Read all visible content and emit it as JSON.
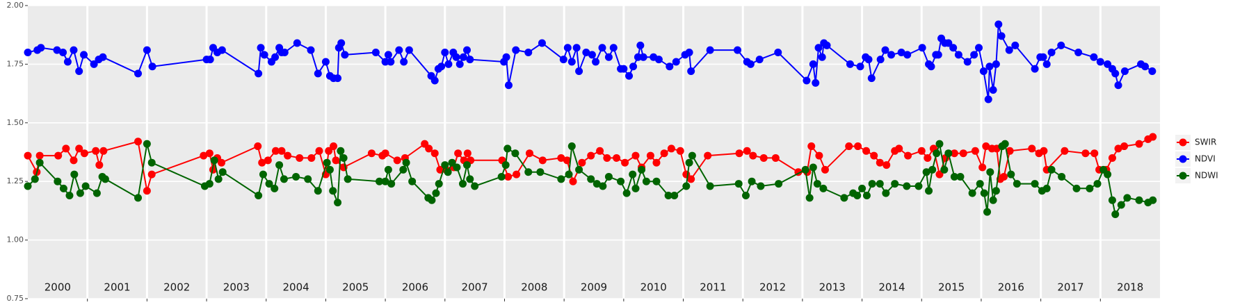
{
  "chart_data": {
    "type": "line",
    "xlim": [
      2000,
      2019
    ],
    "xticks": [
      {
        "value": 2000.5,
        "label": "2000"
      },
      {
        "value": 2001.5,
        "label": "2001"
      },
      {
        "value": 2002.5,
        "label": "2002"
      },
      {
        "value": 2003.5,
        "label": "2003"
      },
      {
        "value": 2004.5,
        "label": "2004"
      },
      {
        "value": 2005.5,
        "label": "2005"
      },
      {
        "value": 2006.5,
        "label": "2006"
      },
      {
        "value": 2007.5,
        "label": "2007"
      },
      {
        "value": 2008.5,
        "label": "2008"
      },
      {
        "value": 2009.5,
        "label": "2009"
      },
      {
        "value": 2010.5,
        "label": "2010"
      },
      {
        "value": 2011.5,
        "label": "2011"
      },
      {
        "value": 2012.5,
        "label": "2012"
      },
      {
        "value": 2013.5,
        "label": "2013"
      },
      {
        "value": 2014.5,
        "label": "2014"
      },
      {
        "value": 2015.5,
        "label": "2015"
      },
      {
        "value": 2016.5,
        "label": "2016"
      },
      {
        "value": 2017.5,
        "label": "2017"
      },
      {
        "value": 2018.5,
        "label": "2018"
      }
    ],
    "ylim": [
      0.75,
      2.0
    ],
    "yticks": [
      0.75,
      {
        "value": 1.0,
        "label": "1.00"
      },
      1.25,
      {
        "value": 1.5,
        "label": "1.50"
      },
      1.75,
      {
        "value": 2.0,
        "label": "2.00"
      }
    ],
    "grid": true,
    "legend": "right",
    "series": [
      {
        "name": "SWIR",
        "color": "#ff0000",
        "x": [
          2000.0,
          2000.15,
          2000.2,
          2000.51,
          2000.64,
          2000.77,
          2000.86,
          2000.95,
          2001.14,
          2001.2,
          2001.27,
          2001.85,
          2002.0,
          2002.08,
          2002.95,
          2003.05,
          2003.11,
          2003.18,
          2003.25,
          2003.86,
          2003.93,
          2004.03,
          2004.16,
          2004.26,
          2004.36,
          2004.56,
          2004.76,
          2004.89,
          2005.0,
          2005.05,
          2005.13,
          2005.17,
          2005.3,
          2005.77,
          2005.95,
          2006.0,
          2006.2,
          2006.33,
          2006.66,
          2006.73,
          2006.83,
          2006.92,
          2007.02,
          2007.15,
          2007.22,
          2007.32,
          2007.38,
          2007.43,
          2007.96,
          2008.06,
          2008.2,
          2008.42,
          2008.64,
          2008.95,
          2009.05,
          2009.15,
          2009.3,
          2009.45,
          2009.6,
          2009.72,
          2009.88,
          2010.02,
          2010.2,
          2010.3,
          2010.45,
          2010.55,
          2010.68,
          2010.8,
          2010.95,
          2011.05,
          2011.13,
          2011.41,
          2011.94,
          2012.07,
          2012.17,
          2012.35,
          2012.55,
          2012.93,
          2013.08,
          2013.15,
          2013.28,
          2013.38,
          2013.78,
          2013.93,
          2014.07,
          2014.2,
          2014.3,
          2014.41,
          2014.55,
          2014.62,
          2014.77,
          2015.0,
          2015.1,
          2015.2,
          2015.3,
          2015.4,
          2015.55,
          2015.7,
          2015.9,
          2016.02,
          2016.08,
          2016.18,
          2016.26,
          2016.32,
          2016.38,
          2016.48,
          2016.85,
          2016.97,
          2017.05,
          2017.1,
          2017.4,
          2017.75,
          2017.9,
          2017.98,
          2018.1,
          2018.2,
          2018.3,
          2018.4,
          2018.65,
          2018.8,
          2018.88
        ],
        "values": [
          1.36,
          1.29,
          1.36,
          1.36,
          1.39,
          1.34,
          1.39,
          1.37,
          1.38,
          1.32,
          1.38,
          1.42,
          1.21,
          1.28,
          1.36,
          1.37,
          1.3,
          1.35,
          1.33,
          1.4,
          1.33,
          1.34,
          1.38,
          1.38,
          1.36,
          1.35,
          1.35,
          1.38,
          1.28,
          1.38,
          1.4,
          1.34,
          1.31,
          1.37,
          1.36,
          1.37,
          1.34,
          1.35,
          1.41,
          1.39,
          1.37,
          1.3,
          1.3,
          1.31,
          1.37,
          1.34,
          1.37,
          1.34,
          1.34,
          1.27,
          1.28,
          1.37,
          1.34,
          1.35,
          1.34,
          1.25,
          1.33,
          1.36,
          1.38,
          1.35,
          1.35,
          1.33,
          1.36,
          1.31,
          1.36,
          1.33,
          1.37,
          1.39,
          1.38,
          1.28,
          1.26,
          1.36,
          1.37,
          1.38,
          1.36,
          1.35,
          1.35,
          1.29,
          1.29,
          1.4,
          1.36,
          1.3,
          1.4,
          1.4,
          1.38,
          1.36,
          1.33,
          1.32,
          1.38,
          1.39,
          1.36,
          1.38,
          1.35,
          1.39,
          1.28,
          1.35,
          1.37,
          1.37,
          1.38,
          1.31,
          1.4,
          1.39,
          1.39,
          1.26,
          1.27,
          1.38,
          1.39,
          1.37,
          1.38,
          1.3,
          1.38,
          1.37,
          1.37,
          1.3,
          1.3,
          1.35,
          1.39,
          1.4,
          1.41,
          1.43,
          1.44
        ]
      },
      {
        "name": "NDVI",
        "color": "#0000ff",
        "x": [
          2000.0,
          2000.16,
          2000.22,
          2000.49,
          2000.59,
          2000.67,
          2000.77,
          2000.86,
          2000.94,
          2001.11,
          2001.19,
          2001.26,
          2001.85,
          2002.0,
          2002.09,
          2003.0,
          2003.06,
          2003.11,
          2003.18,
          2003.26,
          2003.87,
          2003.91,
          2003.97,
          2004.09,
          2004.15,
          2004.22,
          2004.26,
          2004.31,
          2004.52,
          2004.75,
          2004.87,
          2005.0,
          2005.07,
          2005.13,
          2005.2,
          2005.22,
          2005.26,
          2005.32,
          2005.84,
          2006.0,
          2006.05,
          2006.09,
          2006.23,
          2006.31,
          2006.4,
          2006.77,
          2006.83,
          2006.89,
          2006.94,
          2007.0,
          2007.06,
          2007.14,
          2007.19,
          2007.25,
          2007.31,
          2007.37,
          2007.42,
          2007.99,
          2008.03,
          2008.07,
          2008.19,
          2008.4,
          2008.63,
          2008.99,
          2009.06,
          2009.13,
          2009.21,
          2009.25,
          2009.37,
          2009.47,
          2009.53,
          2009.64,
          2009.75,
          2009.83,
          2009.95,
          2010.0,
          2010.09,
          2010.16,
          2010.24,
          2010.28,
          2010.33,
          2010.5,
          2010.59,
          2010.77,
          2010.88,
          2011.03,
          2011.1,
          2011.13,
          2011.45,
          2011.91,
          2012.07,
          2012.13,
          2012.28,
          2012.59,
          2013.07,
          2013.18,
          2013.22,
          2013.27,
          2013.33,
          2013.36,
          2013.41,
          2013.8,
          2013.97,
          2014.06,
          2014.11,
          2014.16,
          2014.31,
          2014.39,
          2014.49,
          2014.66,
          2014.76,
          2015.01,
          2015.12,
          2015.16,
          2015.24,
          2015.28,
          2015.33,
          2015.39,
          2015.45,
          2015.53,
          2015.62,
          2015.77,
          2015.88,
          2015.96,
          2016.04,
          2016.12,
          2016.14,
          2016.2,
          2016.25,
          2016.29,
          2016.34,
          2016.47,
          2016.57,
          2016.9,
          2016.99,
          2017.04,
          2017.1,
          2017.18,
          2017.34,
          2017.63,
          2017.89,
          2018.0,
          2018.12,
          2018.2,
          2018.25,
          2018.3,
          2018.41,
          2018.68,
          2018.75,
          2018.87
        ],
        "values": [
          1.8,
          1.81,
          1.82,
          1.81,
          1.8,
          1.76,
          1.81,
          1.72,
          1.79,
          1.75,
          1.77,
          1.78,
          1.71,
          1.81,
          1.74,
          1.77,
          1.77,
          1.82,
          1.8,
          1.81,
          1.71,
          1.82,
          1.79,
          1.76,
          1.78,
          1.82,
          1.8,
          1.8,
          1.84,
          1.81,
          1.71,
          1.76,
          1.7,
          1.69,
          1.69,
          1.82,
          1.84,
          1.79,
          1.8,
          1.76,
          1.79,
          1.76,
          1.81,
          1.76,
          1.81,
          1.7,
          1.68,
          1.73,
          1.74,
          1.8,
          1.75,
          1.8,
          1.78,
          1.75,
          1.78,
          1.81,
          1.77,
          1.76,
          1.78,
          1.66,
          1.81,
          1.8,
          1.84,
          1.77,
          1.82,
          1.76,
          1.82,
          1.72,
          1.8,
          1.79,
          1.76,
          1.82,
          1.78,
          1.82,
          1.73,
          1.73,
          1.7,
          1.74,
          1.78,
          1.83,
          1.78,
          1.78,
          1.77,
          1.74,
          1.76,
          1.79,
          1.8,
          1.72,
          1.81,
          1.81,
          1.76,
          1.75,
          1.77,
          1.8,
          1.68,
          1.75,
          1.67,
          1.82,
          1.78,
          1.84,
          1.83,
          1.75,
          1.74,
          1.78,
          1.77,
          1.69,
          1.77,
          1.81,
          1.79,
          1.8,
          1.79,
          1.82,
          1.75,
          1.74,
          1.79,
          1.79,
          1.86,
          1.84,
          1.84,
          1.82,
          1.79,
          1.76,
          1.79,
          1.82,
          1.72,
          1.6,
          1.74,
          1.64,
          1.75,
          1.92,
          1.87,
          1.81,
          1.83,
          1.73,
          1.78,
          1.78,
          1.75,
          1.8,
          1.83,
          1.8,
          1.78,
          1.76,
          1.75,
          1.73,
          1.71,
          1.66,
          1.72,
          1.75,
          1.74,
          1.72
        ]
      },
      {
        "name": "NDWI",
        "color": "#006400",
        "x": [
          2000.0,
          2000.12,
          2000.2,
          2000.5,
          2000.6,
          2000.7,
          2000.78,
          2000.88,
          2000.97,
          2001.16,
          2001.25,
          2001.3,
          2001.85,
          2002.0,
          2002.08,
          2002.97,
          2003.05,
          2003.13,
          2003.2,
          2003.27,
          2003.87,
          2003.95,
          2004.05,
          2004.14,
          2004.22,
          2004.3,
          2004.5,
          2004.7,
          2004.87,
          2005.02,
          2005.07,
          2005.12,
          2005.2,
          2005.25,
          2005.3,
          2005.37,
          2005.9,
          2006.0,
          2006.05,
          2006.1,
          2006.3,
          2006.35,
          2006.45,
          2006.72,
          2006.78,
          2006.85,
          2006.9,
          2007.0,
          2007.05,
          2007.12,
          2007.2,
          2007.3,
          2007.37,
          2007.42,
          2007.5,
          2007.95,
          2008.02,
          2008.05,
          2008.18,
          2008.4,
          2008.6,
          2008.95,
          2009.08,
          2009.13,
          2009.25,
          2009.45,
          2009.55,
          2009.65,
          2009.75,
          2009.95,
          2010.05,
          2010.15,
          2010.2,
          2010.3,
          2010.38,
          2010.55,
          2010.75,
          2010.85,
          2011.05,
          2011.1,
          2011.15,
          2011.45,
          2011.93,
          2012.05,
          2012.15,
          2012.3,
          2012.6,
          2013.05,
          2013.12,
          2013.18,
          2013.25,
          2013.35,
          2013.7,
          2013.85,
          2013.92,
          2014.0,
          2014.08,
          2014.17,
          2014.3,
          2014.4,
          2014.55,
          2014.75,
          2014.95,
          2015.08,
          2015.12,
          2015.18,
          2015.25,
          2015.3,
          2015.38,
          2015.45,
          2015.55,
          2015.65,
          2015.85,
          2015.98,
          2016.05,
          2016.1,
          2016.15,
          2016.2,
          2016.25,
          2016.35,
          2016.4,
          2016.5,
          2016.6,
          2016.9,
          2017.02,
          2017.1,
          2017.18,
          2017.35,
          2017.6,
          2017.82,
          2017.95,
          2018.05,
          2018.12,
          2018.2,
          2018.25,
          2018.35,
          2018.45,
          2018.65,
          2018.8,
          2018.88
        ],
        "values": [
          1.23,
          1.26,
          1.33,
          1.25,
          1.22,
          1.19,
          1.28,
          1.2,
          1.23,
          1.2,
          1.27,
          1.26,
          1.18,
          1.41,
          1.33,
          1.23,
          1.24,
          1.34,
          1.26,
          1.29,
          1.19,
          1.28,
          1.24,
          1.22,
          1.32,
          1.26,
          1.27,
          1.26,
          1.21,
          1.33,
          1.3,
          1.21,
          1.16,
          1.38,
          1.35,
          1.26,
          1.25,
          1.25,
          1.3,
          1.24,
          1.3,
          1.33,
          1.25,
          1.18,
          1.17,
          1.2,
          1.24,
          1.32,
          1.29,
          1.33,
          1.31,
          1.24,
          1.32,
          1.26,
          1.23,
          1.27,
          1.32,
          1.39,
          1.37,
          1.29,
          1.29,
          1.26,
          1.28,
          1.4,
          1.3,
          1.26,
          1.24,
          1.23,
          1.27,
          1.25,
          1.2,
          1.28,
          1.22,
          1.3,
          1.25,
          1.25,
          1.19,
          1.19,
          1.23,
          1.33,
          1.36,
          1.23,
          1.24,
          1.19,
          1.25,
          1.23,
          1.24,
          1.3,
          1.18,
          1.31,
          1.24,
          1.22,
          1.18,
          1.2,
          1.19,
          1.22,
          1.19,
          1.24,
          1.24,
          1.2,
          1.24,
          1.23,
          1.23,
          1.29,
          1.21,
          1.3,
          1.37,
          1.41,
          1.3,
          1.37,
          1.27,
          1.27,
          1.2,
          1.24,
          1.2,
          1.12,
          1.29,
          1.17,
          1.21,
          1.4,
          1.41,
          1.28,
          1.24,
          1.24,
          1.21,
          1.22,
          1.3,
          1.27,
          1.22,
          1.22,
          1.24,
          1.3,
          1.28,
          1.17,
          1.11,
          1.15,
          1.18,
          1.17,
          1.16,
          1.17
        ]
      }
    ]
  }
}
